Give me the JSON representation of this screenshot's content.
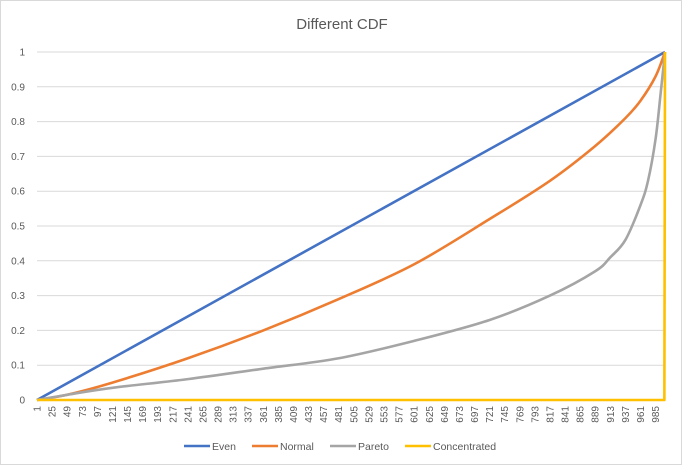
{
  "chart_data": {
    "type": "line",
    "title": "Different CDF",
    "xlabel": "",
    "ylabel": "",
    "xlim": [
      1,
      1000
    ],
    "ylim": [
      0,
      1
    ],
    "y_ticks": [
      "0",
      "0.1",
      "0.2",
      "0.3",
      "0.4",
      "0.5",
      "0.6",
      "0.7",
      "0.8",
      "0.9",
      "1"
    ],
    "x_ticks": [
      "1",
      "25",
      "49",
      "73",
      "97",
      "121",
      "145",
      "169",
      "193",
      "217",
      "241",
      "265",
      "289",
      "313",
      "337",
      "361",
      "385",
      "409",
      "433",
      "457",
      "481",
      "505",
      "529",
      "553",
      "577",
      "601",
      "625",
      "649",
      "673",
      "697",
      "721",
      "745",
      "769",
      "793",
      "817",
      "841",
      "865",
      "889",
      "913",
      "937",
      "961",
      "985"
    ],
    "grid": "horizontal",
    "legend_position": "bottom",
    "series": [
      {
        "name": "Even",
        "color": "#4472c4",
        "x": [
          1,
          1000
        ],
        "y": [
          0,
          1
        ]
      },
      {
        "name": "Normal",
        "color": "#ed7d31",
        "x": [
          1,
          49,
          121,
          241,
          361,
          481,
          601,
          721,
          817,
          889,
          937,
          961,
          985,
          1000
        ],
        "y": [
          0,
          0.015,
          0.05,
          0.12,
          0.2,
          0.29,
          0.39,
          0.52,
          0.63,
          0.73,
          0.81,
          0.86,
          0.93,
          1
        ]
      },
      {
        "name": "Pareto",
        "color": "#a5a5a5",
        "x": [
          1,
          49,
          121,
          241,
          361,
          481,
          601,
          721,
          817,
          889,
          913,
          937,
          961,
          973,
          985,
          993,
          1000
        ],
        "y": [
          0,
          0.015,
          0.035,
          0.06,
          0.09,
          0.12,
          0.17,
          0.23,
          0.3,
          0.37,
          0.41,
          0.46,
          0.56,
          0.63,
          0.75,
          0.88,
          1
        ]
      },
      {
        "name": "Concentrated",
        "color": "#ffc000",
        "x": [
          1,
          999,
          1000
        ],
        "y": [
          0,
          0,
          1
        ]
      }
    ]
  }
}
